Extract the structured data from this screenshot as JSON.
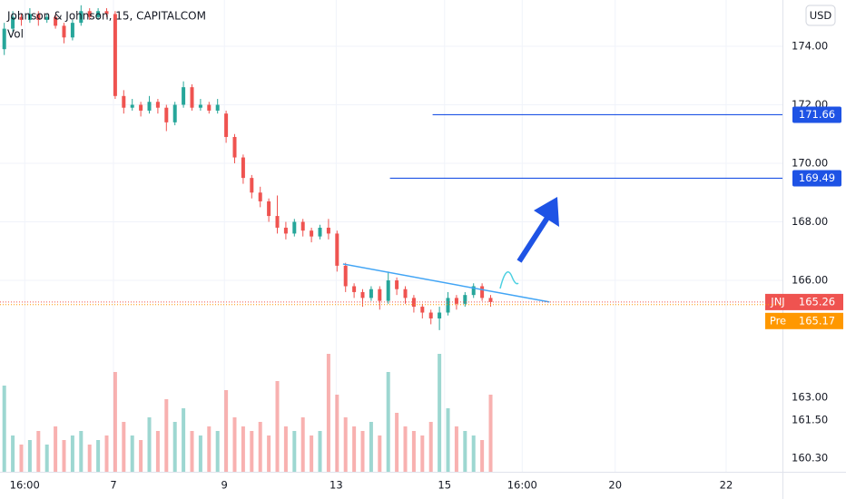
{
  "chart_data": {
    "type": "candlestick",
    "title": "Johnson & Johnson, 15, CAPITALCOM",
    "volume_label": "Vol",
    "currency": "USD",
    "open": [
      173.9,
      174.6,
      175.0,
      174.9,
      175.1,
      174.9,
      175.0,
      174.7,
      174.3,
      174.8,
      175.2,
      175.0,
      175.2,
      175.1,
      172.3,
      171.9,
      172.0,
      171.8,
      172.1,
      171.9,
      171.4,
      172.0,
      172.6,
      171.9,
      172.0,
      171.8,
      171.7,
      170.9,
      170.2,
      169.5,
      169.0,
      168.7,
      168.2,
      167.8,
      167.6,
      168.0,
      167.7,
      167.5,
      167.8,
      167.6,
      166.5,
      165.8,
      165.6,
      165.4,
      165.7,
      165.3,
      166.0,
      165.7,
      165.4,
      165.1,
      164.9,
      164.7,
      164.9,
      165.4,
      165.2,
      165.5,
      165.8,
      165.4
    ],
    "high": [
      174.8,
      175.2,
      175.1,
      175.3,
      175.2,
      175.1,
      175.1,
      174.8,
      174.9,
      175.4,
      175.3,
      175.3,
      175.3,
      175.2,
      172.5,
      172.2,
      172.1,
      172.3,
      172.2,
      172.0,
      172.1,
      172.8,
      172.7,
      172.2,
      172.1,
      172.2,
      171.8,
      171.0,
      170.3,
      169.6,
      169.2,
      168.8,
      168.9,
      168.0,
      168.1,
      168.1,
      167.8,
      167.9,
      168.1,
      167.7,
      166.6,
      165.9,
      165.7,
      165.8,
      165.8,
      166.3,
      166.1,
      165.8,
      165.5,
      165.2,
      165.0,
      165.1,
      165.6,
      165.5,
      165.6,
      165.9,
      165.9,
      165.5
    ],
    "low": [
      173.7,
      174.5,
      174.7,
      174.8,
      174.7,
      174.8,
      174.6,
      174.1,
      174.2,
      174.7,
      174.9,
      174.9,
      175.0,
      172.2,
      171.7,
      171.8,
      171.6,
      171.7,
      171.7,
      171.1,
      171.3,
      171.9,
      171.8,
      171.8,
      171.7,
      171.7,
      170.7,
      170.0,
      169.3,
      168.8,
      168.5,
      168.0,
      167.6,
      167.4,
      167.5,
      167.5,
      167.3,
      167.4,
      167.4,
      166.3,
      165.6,
      165.4,
      165.1,
      165.3,
      165.0,
      165.2,
      165.5,
      165.2,
      164.9,
      164.7,
      164.5,
      164.3,
      164.8,
      165.0,
      165.1,
      165.4,
      165.3,
      165.1
    ],
    "close": [
      174.6,
      175.0,
      174.9,
      175.1,
      174.9,
      175.0,
      174.7,
      174.3,
      174.8,
      175.2,
      175.0,
      175.2,
      175.1,
      172.3,
      171.9,
      172.0,
      171.8,
      172.1,
      171.9,
      171.4,
      172.0,
      172.6,
      171.9,
      172.0,
      171.8,
      172.0,
      170.9,
      170.2,
      169.5,
      169.0,
      168.7,
      168.2,
      167.8,
      167.6,
      168.0,
      167.7,
      167.5,
      167.8,
      167.6,
      166.5,
      165.8,
      165.6,
      165.4,
      165.7,
      165.3,
      166.0,
      165.7,
      165.4,
      165.1,
      164.9,
      164.7,
      164.9,
      165.4,
      165.2,
      165.5,
      165.8,
      165.4,
      165.26
    ],
    "volume": [
      95,
      40,
      30,
      35,
      45,
      30,
      50,
      35,
      40,
      45,
      30,
      35,
      40,
      110,
      55,
      40,
      35,
      60,
      45,
      80,
      55,
      70,
      45,
      40,
      50,
      45,
      90,
      60,
      50,
      45,
      55,
      40,
      100,
      50,
      45,
      60,
      40,
      45,
      130,
      85,
      60,
      50,
      45,
      55,
      40,
      110,
      65,
      50,
      45,
      40,
      55,
      130,
      70,
      50,
      45,
      40,
      35,
      85
    ],
    "up_color": "#26a69a",
    "down_color": "#ef5350",
    "xlim": [
      -0.5,
      91.2
    ],
    "xticks": [
      {
        "value": 2.4,
        "label": "16:00"
      },
      {
        "value": 12.8,
        "label": "7"
      },
      {
        "value": 25.8,
        "label": "9"
      },
      {
        "value": 38.9,
        "label": "13"
      },
      {
        "value": 51.6,
        "label": "15"
      },
      {
        "value": 60.7,
        "label": "16:00"
      },
      {
        "value": 71.6,
        "label": "20"
      },
      {
        "value": 84.6,
        "label": "22"
      }
    ],
    "ylim": [
      159.46,
      175.58
    ],
    "yticks": [
      {
        "value": 174,
        "label": "174.00"
      },
      {
        "value": 172,
        "label": "172.00"
      },
      {
        "value": 170,
        "label": "170.00"
      },
      {
        "value": 168,
        "label": "168.00"
      },
      {
        "value": 166,
        "label": "166.00"
      }
    ],
    "scale_labels": [
      "163.00",
      "161.50",
      "160.30"
    ],
    "vlim": [
      0,
      130
    ],
    "levels": [
      {
        "value": 171.66,
        "start": 50.2,
        "color": "#1e53e5"
      },
      {
        "value": 169.49,
        "start": 45.2,
        "color": "#1e53e5"
      }
    ],
    "trendline": {
      "x": [
        39.7,
        63.9
      ],
      "y": [
        166.56,
        165.26
      ],
      "color": "#42a5f5"
    },
    "price_tags": [
      {
        "name": "JNJ",
        "value": 165.26,
        "color": "#ef5350"
      },
      {
        "name": "Pre",
        "value": 165.17,
        "color": "#ff9800"
      }
    ]
  }
}
